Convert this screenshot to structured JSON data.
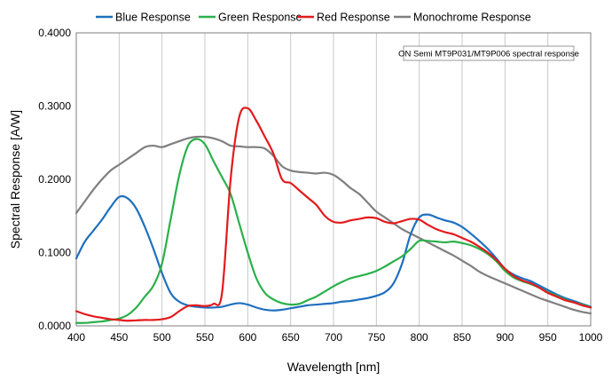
{
  "chart_data": {
    "type": "line",
    "title": "",
    "xlabel": "Wavelength [nm]",
    "ylabel": "Spectral Response [A/W]",
    "xlim": [
      400,
      1000
    ],
    "ylim": [
      0,
      0.4
    ],
    "x_ticks": [
      "400",
      "450",
      "500",
      "550",
      "600",
      "650",
      "700",
      "750",
      "800",
      "850",
      "900",
      "950",
      "1000"
    ],
    "y_ticks": [
      "0.0000",
      "0.1000",
      "0.2000",
      "0.3000",
      "0.4000"
    ],
    "grid": "vertical",
    "legend_position": "top",
    "annotation": "ON Semi MT9P031/MT9P006 spectral response",
    "series": [
      {
        "name": "Blue Response",
        "color": "#1f6fbf",
        "x": [
          400,
          410,
          420,
          430,
          440,
          450,
          460,
          470,
          480,
          490,
          500,
          510,
          520,
          530,
          540,
          550,
          560,
          570,
          580,
          590,
          600,
          610,
          620,
          630,
          640,
          650,
          660,
          670,
          680,
          690,
          700,
          710,
          720,
          730,
          740,
          750,
          760,
          770,
          780,
          790,
          800,
          810,
          820,
          830,
          840,
          850,
          860,
          870,
          880,
          890,
          900,
          910,
          920,
          930,
          940,
          950,
          960,
          970,
          980,
          990,
          1000
        ],
        "y": [
          0.092,
          0.115,
          0.13,
          0.145,
          0.162,
          0.176,
          0.174,
          0.16,
          0.135,
          0.105,
          0.072,
          0.045,
          0.033,
          0.028,
          0.026,
          0.025,
          0.025,
          0.026,
          0.029,
          0.031,
          0.029,
          0.025,
          0.022,
          0.021,
          0.022,
          0.024,
          0.026,
          0.028,
          0.029,
          0.03,
          0.031,
          0.033,
          0.034,
          0.036,
          0.038,
          0.041,
          0.046,
          0.058,
          0.085,
          0.125,
          0.148,
          0.152,
          0.148,
          0.144,
          0.141,
          0.135,
          0.126,
          0.116,
          0.105,
          0.092,
          0.078,
          0.07,
          0.065,
          0.061,
          0.055,
          0.049,
          0.043,
          0.038,
          0.034,
          0.03,
          0.026
        ]
      },
      {
        "name": "Green Response",
        "color": "#2ab04a",
        "x": [
          400,
          410,
          420,
          430,
          440,
          450,
          460,
          470,
          480,
          490,
          500,
          510,
          520,
          530,
          540,
          550,
          560,
          570,
          580,
          590,
          600,
          610,
          620,
          630,
          640,
          650,
          660,
          670,
          680,
          690,
          700,
          710,
          720,
          730,
          740,
          750,
          760,
          770,
          780,
          790,
          800,
          810,
          820,
          830,
          840,
          850,
          860,
          870,
          880,
          890,
          900,
          910,
          920,
          930,
          940,
          950,
          960,
          970,
          980,
          990,
          1000
        ],
        "y": [
          0.004,
          0.004,
          0.005,
          0.006,
          0.008,
          0.01,
          0.015,
          0.025,
          0.04,
          0.055,
          0.085,
          0.145,
          0.205,
          0.245,
          0.255,
          0.248,
          0.225,
          0.203,
          0.18,
          0.14,
          0.1,
          0.065,
          0.045,
          0.036,
          0.031,
          0.029,
          0.03,
          0.035,
          0.04,
          0.047,
          0.054,
          0.06,
          0.065,
          0.068,
          0.071,
          0.075,
          0.081,
          0.088,
          0.095,
          0.105,
          0.116,
          0.116,
          0.115,
          0.114,
          0.115,
          0.113,
          0.11,
          0.105,
          0.098,
          0.088,
          0.075,
          0.066,
          0.061,
          0.057,
          0.052,
          0.046,
          0.041,
          0.036,
          0.032,
          0.029,
          0.025
        ]
      },
      {
        "name": "Red Response",
        "color": "#e31a1c",
        "x": [
          400,
          410,
          420,
          430,
          440,
          450,
          460,
          470,
          480,
          490,
          500,
          510,
          520,
          530,
          540,
          550,
          560,
          570,
          580,
          590,
          600,
          610,
          620,
          630,
          640,
          650,
          660,
          670,
          680,
          690,
          700,
          710,
          720,
          730,
          740,
          750,
          760,
          770,
          780,
          790,
          800,
          810,
          820,
          830,
          840,
          850,
          860,
          870,
          880,
          890,
          900,
          910,
          920,
          930,
          940,
          950,
          960,
          970,
          980,
          990,
          1000
        ],
        "y": [
          0.02,
          0.016,
          0.013,
          0.011,
          0.009,
          0.008,
          0.007,
          0.0075,
          0.008,
          0.008,
          0.009,
          0.012,
          0.02,
          0.027,
          0.028,
          0.027,
          0.03,
          0.045,
          0.2,
          0.285,
          0.297,
          0.28,
          0.258,
          0.235,
          0.2,
          0.195,
          0.185,
          0.175,
          0.165,
          0.15,
          0.142,
          0.141,
          0.144,
          0.146,
          0.148,
          0.147,
          0.142,
          0.14,
          0.143,
          0.146,
          0.145,
          0.138,
          0.132,
          0.128,
          0.125,
          0.12,
          0.115,
          0.108,
          0.1,
          0.09,
          0.078,
          0.068,
          0.062,
          0.058,
          0.052,
          0.045,
          0.04,
          0.035,
          0.032,
          0.028,
          0.025
        ]
      },
      {
        "name": "Monochrome Response",
        "color": "#7f7f7f",
        "x": [
          400,
          410,
          420,
          430,
          440,
          450,
          460,
          470,
          480,
          490,
          500,
          510,
          520,
          530,
          540,
          550,
          560,
          570,
          580,
          590,
          600,
          610,
          620,
          630,
          640,
          650,
          660,
          670,
          680,
          690,
          700,
          710,
          720,
          730,
          740,
          750,
          760,
          770,
          780,
          790,
          800,
          810,
          820,
          830,
          840,
          850,
          860,
          870,
          880,
          890,
          900,
          910,
          920,
          930,
          940,
          950,
          960,
          970,
          980,
          990,
          1000
        ],
        "y": [
          0.154,
          0.17,
          0.186,
          0.2,
          0.212,
          0.22,
          0.228,
          0.236,
          0.244,
          0.246,
          0.244,
          0.248,
          0.252,
          0.256,
          0.258,
          0.258,
          0.256,
          0.252,
          0.246,
          0.245,
          0.244,
          0.244,
          0.242,
          0.232,
          0.218,
          0.212,
          0.21,
          0.209,
          0.208,
          0.209,
          0.206,
          0.198,
          0.188,
          0.18,
          0.168,
          0.156,
          0.148,
          0.14,
          0.132,
          0.126,
          0.12,
          0.114,
          0.108,
          0.102,
          0.096,
          0.089,
          0.082,
          0.074,
          0.068,
          0.063,
          0.058,
          0.053,
          0.048,
          0.043,
          0.038,
          0.034,
          0.03,
          0.026,
          0.022,
          0.019,
          0.017
        ]
      }
    ]
  }
}
